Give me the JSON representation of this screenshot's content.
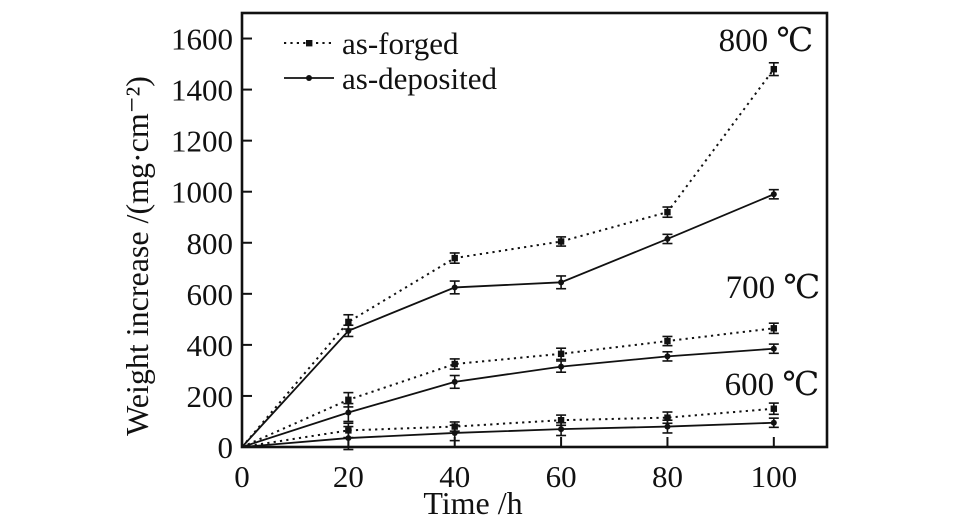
{
  "figure": {
    "background": "#ffffff",
    "ink_color": "#111111"
  },
  "chart_data": {
    "type": "line",
    "title": "",
    "xlabel": "Time /h",
    "ylabel": "Weight increase /(mg·cm⁻²)",
    "x": [
      0,
      20,
      40,
      60,
      80,
      100
    ],
    "xlim": [
      0,
      110
    ],
    "ylim": [
      0,
      1700
    ],
    "xticks": [
      0,
      20,
      40,
      60,
      80,
      100
    ],
    "yticks": [
      0,
      200,
      400,
      600,
      800,
      1000,
      1200,
      1400,
      1600
    ],
    "grid": false,
    "error_bars": true,
    "legend_position": "top-left-inside",
    "legend": [
      {
        "label": "as-forged",
        "linestyle": "dotted",
        "marker": "square"
      },
      {
        "label": "as-deposited",
        "linestyle": "solid",
        "marker": "dot"
      }
    ],
    "annotations": [
      {
        "text": "800 ℃",
        "x": 98,
        "y": 1600
      },
      {
        "text": "700 ℃",
        "x": 99,
        "y": 627
      },
      {
        "text": "600 ℃",
        "x": 99,
        "y": 247
      }
    ],
    "series": [
      {
        "name": "800 ℃ as-forged",
        "temperature": "800 ℃",
        "condition": "as-forged",
        "linestyle": "dotted",
        "marker": "square",
        "values": [
          0,
          490,
          740,
          805,
          920,
          1480
        ],
        "errors": [
          0,
          28,
          20,
          18,
          20,
          25
        ]
      },
      {
        "name": "800 ℃ as-deposited",
        "temperature": "800 ℃",
        "condition": "as-deposited",
        "linestyle": "solid",
        "marker": "dot",
        "values": [
          0,
          455,
          625,
          645,
          815,
          990
        ],
        "errors": [
          0,
          22,
          25,
          25,
          18,
          18
        ]
      },
      {
        "name": "700 ℃ as-forged",
        "temperature": "700 ℃",
        "condition": "as-forged",
        "linestyle": "dotted",
        "marker": "square",
        "values": [
          0,
          185,
          325,
          365,
          415,
          465
        ],
        "errors": [
          0,
          28,
          20,
          22,
          18,
          20
        ]
      },
      {
        "name": "700 ℃ as-deposited",
        "temperature": "700 ℃",
        "condition": "as-deposited",
        "linestyle": "solid",
        "marker": "dot",
        "values": [
          0,
          135,
          255,
          315,
          355,
          385
        ],
        "errors": [
          0,
          35,
          25,
          22,
          18,
          18
        ]
      },
      {
        "name": "600 ℃ as-forged",
        "temperature": "600 ℃",
        "condition": "as-forged",
        "linestyle": "dotted",
        "marker": "square",
        "values": [
          0,
          65,
          80,
          105,
          115,
          150
        ],
        "errors": [
          0,
          28,
          18,
          20,
          22,
          22
        ]
      },
      {
        "name": "600 ℃ as-deposited",
        "temperature": "600 ℃",
        "condition": "as-deposited",
        "linestyle": "solid",
        "marker": "dot",
        "values": [
          0,
          35,
          55,
          70,
          80,
          95
        ],
        "errors": [
          0,
          45,
          30,
          25,
          25,
          18
        ]
      }
    ]
  }
}
